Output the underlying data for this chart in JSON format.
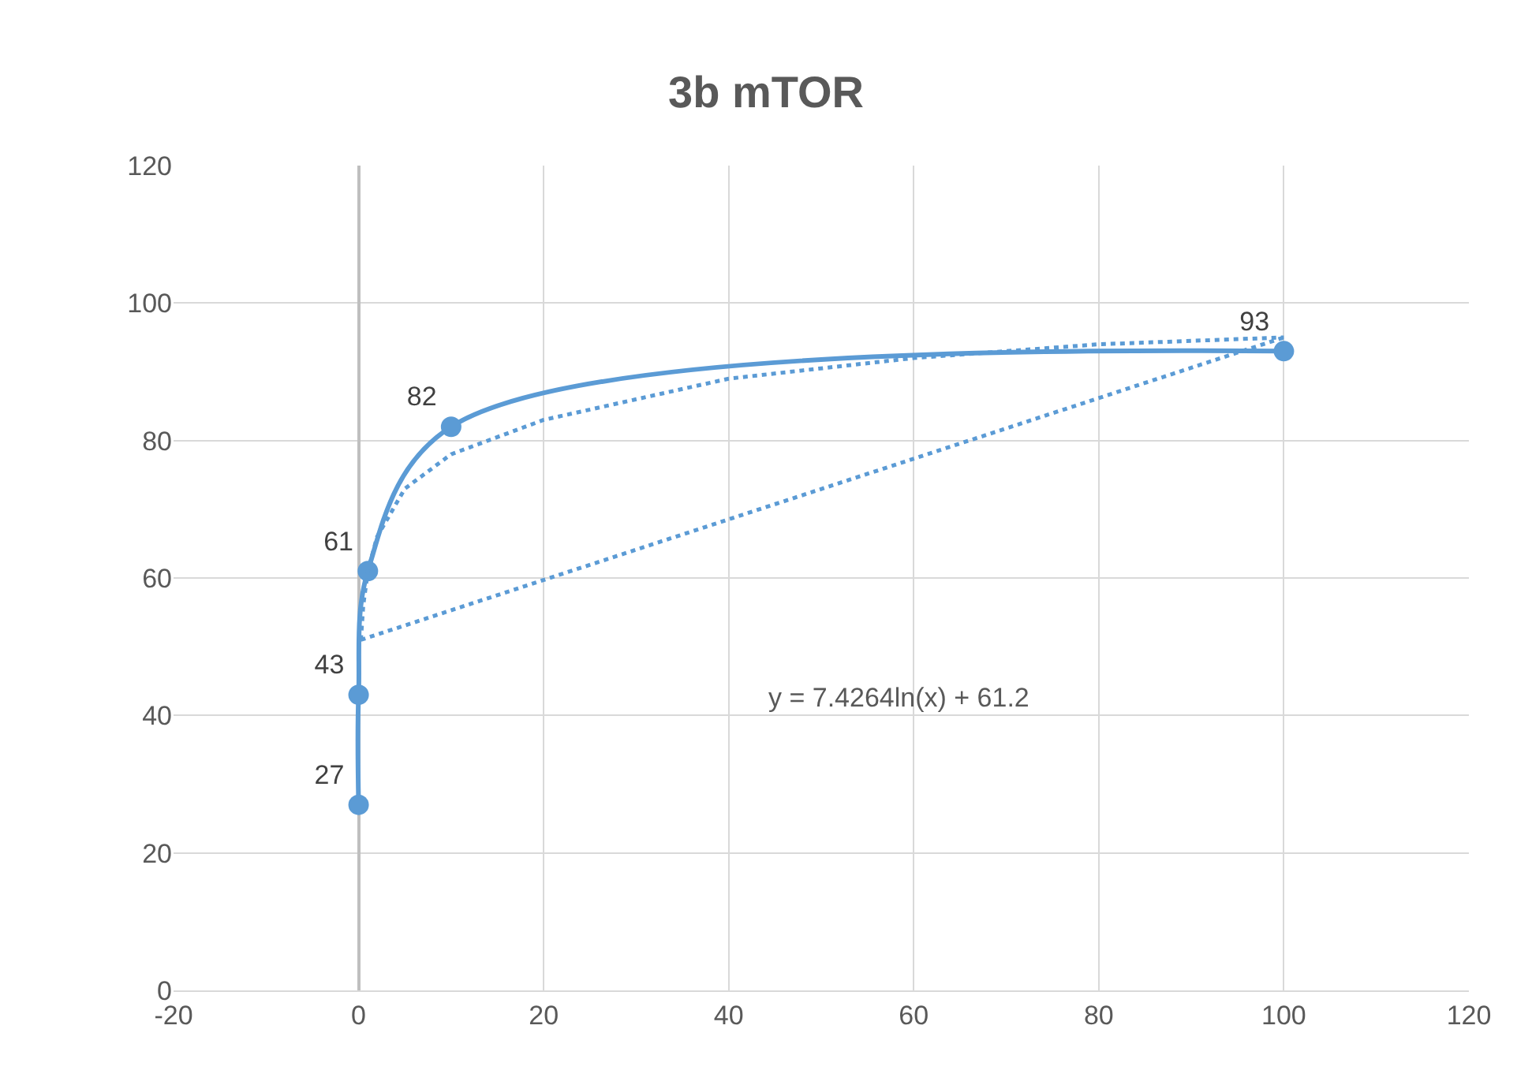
{
  "chart_data": {
    "type": "line",
    "title": "3b mTOR",
    "series": [
      {
        "color": "#5b9bd5",
        "marker": "circle",
        "line_style": "solid",
        "data_labels": true,
        "x": [
          0,
          0,
          1,
          10,
          100
        ],
        "values": [
          27,
          43,
          61,
          82,
          93
        ]
      },
      {
        "color": "#5b9bd5",
        "marker": "none",
        "line_style": "dotted",
        "x": [
          0.25,
          0.5,
          1,
          2,
          5,
          10,
          20,
          40,
          60,
          80,
          100
        ],
        "values": [
          51,
          56,
          61,
          66,
          73,
          78,
          83,
          89,
          92,
          94,
          95
        ]
      },
      {
        "color": "#5b9bd5",
        "marker": "none",
        "line_style": "dotted",
        "x": [
          0.25,
          100
        ],
        "values": [
          51,
          95
        ]
      }
    ],
    "annotations": [
      "y = 7.4264ln(x) + 61.2"
    ],
    "xlim": [
      -20,
      120
    ],
    "xticks": [
      -20,
      0,
      20,
      40,
      60,
      80,
      100,
      120
    ],
    "ylim": [
      0,
      120
    ],
    "yticks": [
      0,
      20,
      40,
      60,
      80,
      100,
      120
    ],
    "grid": true
  }
}
